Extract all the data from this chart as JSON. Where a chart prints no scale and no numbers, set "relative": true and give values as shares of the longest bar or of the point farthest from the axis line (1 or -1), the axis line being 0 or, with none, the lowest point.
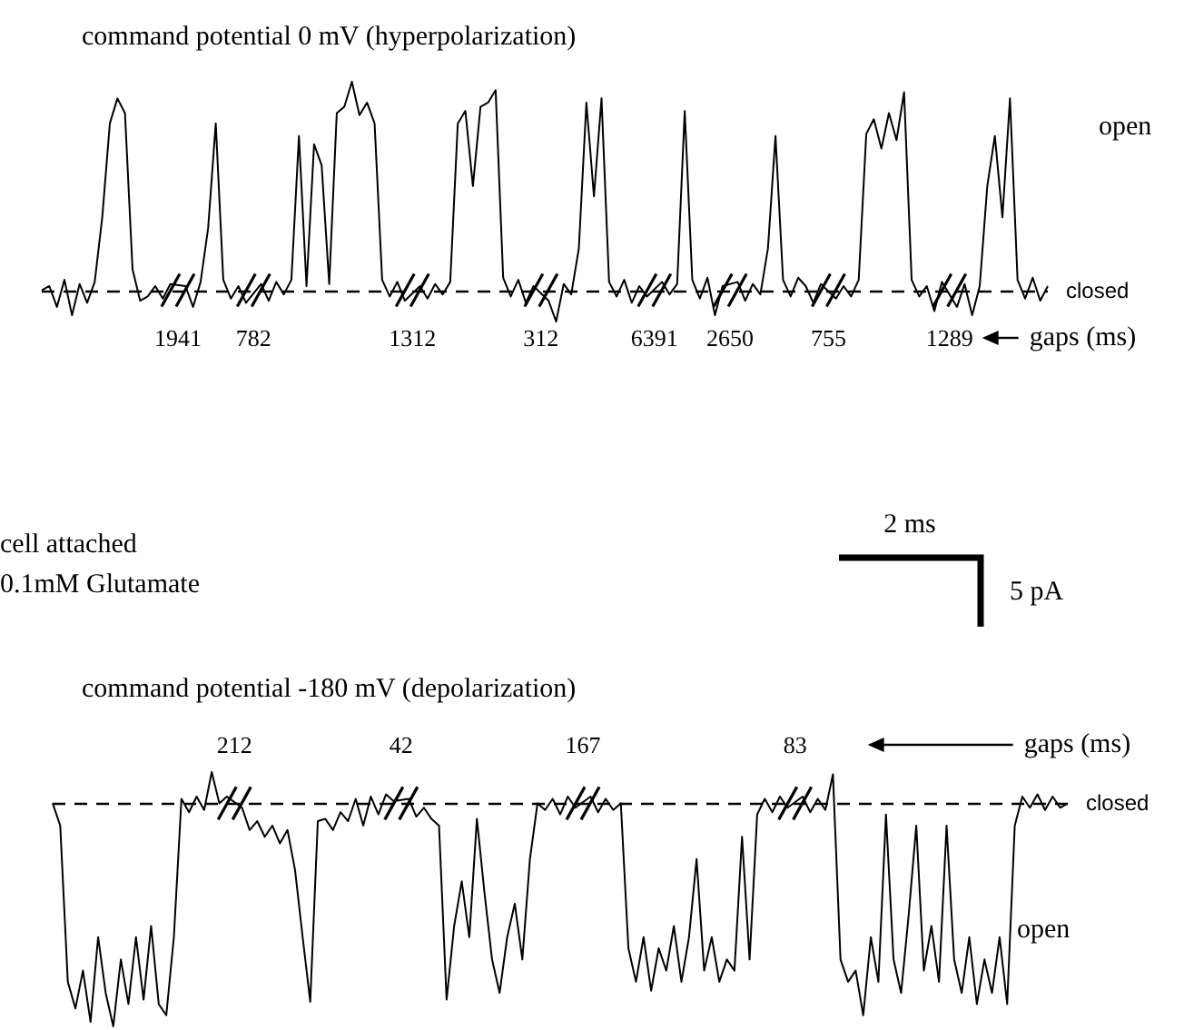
{
  "chart_data": [
    {
      "type": "line",
      "title": "command potential 0 mV (hyperpolarization)",
      "relative": true,
      "color": "#000000",
      "line_style": "solid",
      "categories": [
        null,
        null,
        null,
        null,
        null,
        null,
        null,
        null,
        null,
        null,
        null,
        null,
        null,
        null,
        null,
        null,
        null,
        null,
        null,
        null,
        null,
        null,
        null,
        null,
        null,
        null,
        null,
        null,
        null,
        null,
        null,
        null,
        null,
        null,
        null,
        null,
        null,
        null,
        null,
        null,
        null,
        null,
        null,
        null,
        null,
        null,
        null,
        null,
        null,
        null,
        null,
        null,
        null,
        null,
        null,
        null,
        null,
        null,
        null,
        null,
        null,
        null,
        null,
        null,
        null,
        null,
        null,
        null,
        null,
        null,
        null,
        null,
        null,
        null,
        null,
        null,
        null,
        null,
        null,
        null,
        null,
        null,
        null,
        null,
        null,
        null,
        null,
        null,
        null,
        null,
        null,
        null,
        null,
        null,
        null,
        null,
        null,
        null,
        null,
        null,
        null,
        null,
        null,
        null,
        null,
        null,
        null,
        null,
        null,
        null,
        null,
        null,
        null,
        null,
        null,
        null,
        null,
        null,
        null,
        null,
        null,
        null,
        null,
        null,
        null,
        null,
        null,
        null,
        null,
        null,
        null,
        null,
        null,
        null
      ],
      "values": [
        0,
        0.02,
        -0.08,
        0.05,
        -0.12,
        0.03,
        -0.06,
        0.04,
        0.35,
        0.8,
        0.92,
        0.85,
        0.1,
        -0.05,
        -0.03,
        0.02,
        -0.04,
        0.03,
        null,
        0.02,
        -0.08,
        0.04,
        0.3,
        0.8,
        0.05,
        -0.04,
        0.02,
        -0.06,
        null,
        0.03,
        -0.05,
        0.04,
        -0.02,
        0.05,
        0.74,
        0.02,
        0.7,
        0.6,
        0.03,
        0.85,
        0.88,
        1,
        0.84,
        0.9,
        0.8,
        0.05,
        -0.03,
        0.04,
        -0.05,
        null,
        0.02,
        -0.04,
        0.03,
        -0.02,
        0.04,
        0.8,
        0.86,
        0.5,
        0.88,
        0.9,
        0.96,
        0.06,
        -0.03,
        0.05,
        -0.06,
        0.02,
        null,
        -0.05,
        -0.15,
        0.03,
        -0.02,
        0.2,
        0.9,
        0.45,
        0.92,
        0.04,
        -0.03,
        0.05,
        -0.06,
        0.02,
        -0.03,
        null,
        0.04,
        -0.02,
        0.03,
        0.86,
        0.05,
        -0.04,
        0.06,
        -0.12,
        0.02,
        null,
        0.04,
        -0.05,
        0.03,
        -0.02,
        0.2,
        0.74,
        0.05,
        -0.03,
        0.06,
        0.02,
        -0.06,
        0.03,
        null,
        -0.04,
        0.02,
        -0.03,
        0.05,
        0.75,
        0.82,
        0.68,
        0.85,
        0.72,
        0.95,
        0.05,
        -0.03,
        0.02,
        -0.1,
        0.04,
        null,
        -0.08,
        0.03,
        -0.12,
        0.02,
        0.5,
        0.74,
        0.35,
        0.92,
        0.05,
        -0.04,
        0.06,
        -0.05,
        0.02
      ],
      "ref_lines": [
        {
          "axis": "y",
          "value": 0,
          "label": "closed",
          "line_style": "dashed"
        }
      ],
      "annotations": [
        "1941",
        "782",
        "1312",
        "312",
        "6391",
        "2650",
        "755",
        "1289",
        "gaps (ms)",
        "open",
        "cell attached",
        "0.1mM Glutamate",
        "2 ms",
        "5 pA"
      ]
    },
    {
      "type": "line",
      "title": "command potential -180 mV (depolarization)",
      "relative": true,
      "color": "#000000",
      "line_style": "solid",
      "categories": [
        null,
        null,
        null,
        null,
        null,
        null,
        null,
        null,
        null,
        null,
        null,
        null,
        null,
        null,
        null,
        null,
        null,
        null,
        null,
        null,
        null,
        null,
        null,
        null,
        null,
        null,
        null,
        null,
        null,
        null,
        null,
        null,
        null,
        null,
        null,
        null,
        null,
        null,
        null,
        null,
        null,
        null,
        null,
        null,
        null,
        null,
        null,
        null,
        null,
        null,
        null,
        null,
        null,
        null,
        null,
        null,
        null,
        null,
        null,
        null,
        null,
        null,
        null,
        null,
        null,
        null,
        null,
        null,
        null,
        null,
        null,
        null,
        null,
        null,
        null,
        null,
        null,
        null,
        null,
        null,
        null,
        null,
        null,
        null,
        null,
        null,
        null,
        null,
        null,
        null,
        null,
        null,
        null,
        null,
        null,
        null,
        null,
        null,
        null,
        null,
        null,
        null,
        null,
        null,
        null,
        null,
        null,
        null,
        null,
        null,
        null,
        null,
        null,
        null,
        null,
        null,
        null,
        null,
        null,
        null,
        null,
        null,
        null,
        null,
        null,
        null,
        null,
        null,
        null,
        null,
        null,
        null,
        null,
        null,
        null
      ],
      "values": [
        0,
        -0.1,
        -0.8,
        -0.92,
        -0.75,
        -0.98,
        -0.6,
        -0.85,
        -1,
        -0.7,
        -0.9,
        -0.6,
        -0.88,
        -0.55,
        -0.9,
        -0.95,
        -0.6,
        0.02,
        -0.04,
        0.03,
        -0.03,
        0.14,
        0,
        0.03,
        null,
        -0.02,
        -0.12,
        -0.08,
        -0.15,
        -0.1,
        -0.18,
        -0.12,
        -0.3,
        -0.6,
        -0.89,
        -0.08,
        -0.07,
        -0.12,
        -0.04,
        -0.08,
        0.02,
        -0.1,
        0.03,
        -0.05,
        0.04,
        0.01,
        null,
        0.02,
        -0.06,
        -0.02,
        -0.07,
        -0.1,
        -0.88,
        -0.55,
        -0.35,
        -0.6,
        -0.07,
        -0.4,
        -0.7,
        -0.85,
        -0.6,
        -0.45,
        -0.7,
        -0.25,
        0,
        -0.03,
        0.02,
        -0.05,
        0.03,
        -0.02,
        null,
        0.03,
        -0.04,
        0.02,
        -0.03,
        0,
        -0.65,
        -0.8,
        -0.6,
        -0.84,
        -0.65,
        -0.75,
        -0.55,
        -0.8,
        -0.6,
        -0.25,
        -0.75,
        -0.6,
        -0.8,
        -0.7,
        -0.75,
        -0.15,
        -0.7,
        -0.05,
        0.02,
        -0.04,
        0.03,
        -0.02,
        null,
        0.03,
        -0.04,
        0.02,
        -0.03,
        0.13,
        -0.7,
        -0.8,
        -0.75,
        -0.95,
        -0.6,
        -0.8,
        -0.05,
        -0.7,
        -0.85,
        -0.5,
        -0.1,
        -0.75,
        -0.55,
        -0.8,
        -0.1,
        -0.7,
        -0.85,
        -0.6,
        -0.9,
        -0.7,
        -0.85,
        -0.6,
        -0.9,
        -0.1,
        0.03,
        -0.02,
        0.04,
        -0.03,
        0.03,
        -0.02,
        0
      ],
      "ref_lines": [
        {
          "axis": "y",
          "value": 0,
          "label": "closed",
          "line_style": "dashed"
        }
      ],
      "annotations": [
        "212",
        "42",
        "167",
        "83",
        "gaps (ms)",
        "open"
      ]
    }
  ]
}
